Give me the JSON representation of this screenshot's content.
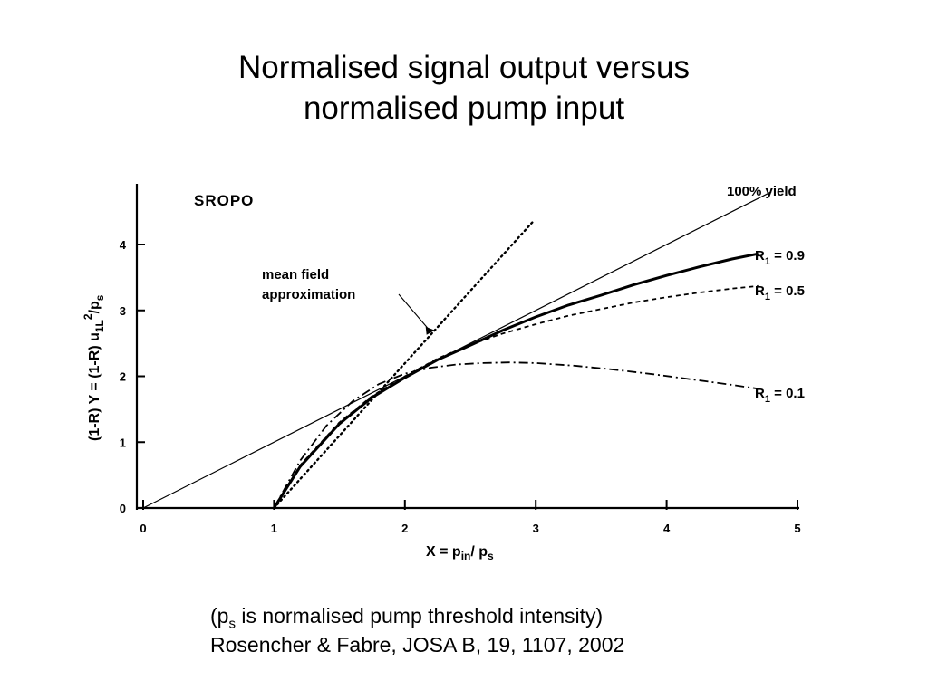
{
  "slide": {
    "title_line1": "Normalised signal output versus",
    "title_line2": "normalised pump input",
    "caption_open": "(p",
    "caption_sub": "s",
    "caption_rest": " is normalised pump threshold intensity)",
    "citation": "Rosencher & Fabre, JOSA B, 19, 1107, 2002"
  },
  "chart_data": {
    "type": "line",
    "panel_label": "SROPO",
    "xlabel": {
      "pre": "X = p",
      "sub1": "in",
      "mid": "/ p",
      "sub2": "s"
    },
    "ylabel": {
      "pre": "(1-R) Y = (1-R)  u",
      "sub": "1L",
      "sup": "2",
      "mid": "/p",
      "sub2": "s"
    },
    "xlim": [
      0,
      5
    ],
    "ylim": [
      0,
      4.5
    ],
    "x_ticks": [
      "0",
      "1",
      "2",
      "3",
      "4",
      "5"
    ],
    "y_ticks": [
      "0",
      "1",
      "2",
      "3",
      "4"
    ],
    "grid": false,
    "annotation": {
      "text_line1": "mean field",
      "text_line2": "approximation"
    },
    "series": [
      {
        "name": "100%  yield",
        "style": "thin-solid",
        "x": [
          0,
          4.8
        ],
        "y": [
          0,
          4.8
        ]
      },
      {
        "name": "R",
        "subscript": "1",
        "value": " = 0.9",
        "style": "thick-solid",
        "x": [
          1.0,
          1.2,
          1.5,
          1.75,
          2.0,
          2.25,
          2.5,
          2.75,
          3.0,
          3.25,
          3.5,
          3.75,
          4.0,
          4.25,
          4.5,
          4.7
        ],
        "y": [
          0.0,
          0.63,
          1.28,
          1.68,
          1.98,
          2.25,
          2.47,
          2.7,
          2.9,
          3.08,
          3.23,
          3.39,
          3.53,
          3.66,
          3.78,
          3.86
        ]
      },
      {
        "name": "R",
        "subscript": "1",
        "value": " = 0.5",
        "style": "dashed",
        "x": [
          1.0,
          1.2,
          1.5,
          1.75,
          2.0,
          2.25,
          2.5,
          2.75,
          3.0,
          3.25,
          3.5,
          3.75,
          4.0,
          4.25,
          4.5,
          4.7
        ],
        "y": [
          0.0,
          0.65,
          1.3,
          1.7,
          2.0,
          2.27,
          2.48,
          2.65,
          2.79,
          2.92,
          3.02,
          3.12,
          3.2,
          3.27,
          3.33,
          3.37
        ]
      },
      {
        "name": "R",
        "subscript": "1",
        "value": " = 0.1",
        "style": "dash-dot",
        "x": [
          1.0,
          1.2,
          1.4,
          1.6,
          1.8,
          2.0,
          2.2,
          2.4,
          2.6,
          2.8,
          3.0,
          3.3,
          3.6,
          3.9,
          4.2,
          4.5,
          4.7
        ],
        "y": [
          0.0,
          0.72,
          1.25,
          1.62,
          1.88,
          2.04,
          2.13,
          2.18,
          2.2,
          2.21,
          2.2,
          2.16,
          2.1,
          2.03,
          1.95,
          1.87,
          1.81
        ]
      },
      {
        "name": "mean field approximation",
        "style": "dotted",
        "x": [
          1.0,
          2.98
        ],
        "y": [
          0.0,
          4.35
        ]
      }
    ]
  }
}
